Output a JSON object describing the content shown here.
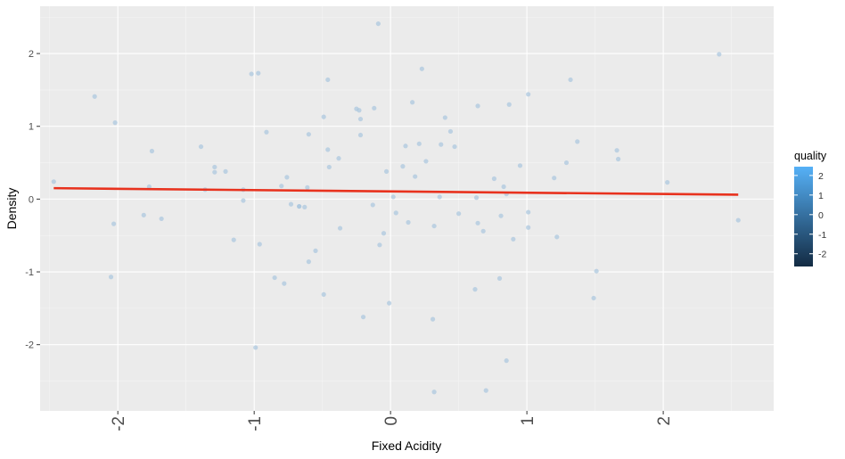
{
  "chart_data": {
    "type": "scatter",
    "title": "",
    "xlabel": "Fixed Acidity",
    "ylabel": "Density",
    "xlim": [
      -2.57,
      2.81
    ],
    "ylim": [
      -2.91,
      2.65
    ],
    "x_ticks": [
      -2,
      -1,
      0,
      1,
      2
    ],
    "x_tick_labels": [
      "-2",
      "-1",
      "0",
      "1",
      "2"
    ],
    "y_ticks": [
      -2,
      -1,
      0,
      1,
      2
    ],
    "y_tick_labels": [
      "-2",
      "-1",
      "0",
      "1",
      "2"
    ],
    "grid": true,
    "points_color": "#a9c6de",
    "points": [
      {
        "x": -2.47,
        "y": 0.24
      },
      {
        "x": -2.17,
        "y": 1.41
      },
      {
        "x": -2.02,
        "y": 1.05
      },
      {
        "x": -2.03,
        "y": -0.34
      },
      {
        "x": -2.05,
        "y": -1.07
      },
      {
        "x": -1.81,
        "y": -0.22
      },
      {
        "x": -1.77,
        "y": 0.17
      },
      {
        "x": -1.75,
        "y": 0.66
      },
      {
        "x": -1.68,
        "y": -0.27
      },
      {
        "x": -1.39,
        "y": 0.72
      },
      {
        "x": -1.36,
        "y": 0.13
      },
      {
        "x": -1.29,
        "y": 0.37
      },
      {
        "x": -1.29,
        "y": 0.44
      },
      {
        "x": -1.21,
        "y": 0.38
      },
      {
        "x": -1.15,
        "y": -0.56
      },
      {
        "x": -1.08,
        "y": 0.13
      },
      {
        "x": -1.08,
        "y": -0.02
      },
      {
        "x": -1.02,
        "y": 1.72
      },
      {
        "x": -0.97,
        "y": 1.73
      },
      {
        "x": -0.99,
        "y": -2.04
      },
      {
        "x": -0.96,
        "y": -0.62
      },
      {
        "x": -0.91,
        "y": 0.92
      },
      {
        "x": -0.85,
        "y": -1.08
      },
      {
        "x": -0.8,
        "y": 0.18
      },
      {
        "x": -0.78,
        "y": -1.16
      },
      {
        "x": -0.76,
        "y": 0.3
      },
      {
        "x": -0.73,
        "y": -0.07
      },
      {
        "x": -0.67,
        "y": -0.1
      },
      {
        "x": -0.67,
        "y": -0.1
      },
      {
        "x": -0.63,
        "y": -0.11
      },
      {
        "x": -0.61,
        "y": 0.16
      },
      {
        "x": -0.6,
        "y": 0.89
      },
      {
        "x": -0.6,
        "y": -0.86
      },
      {
        "x": -0.55,
        "y": -0.71
      },
      {
        "x": -0.49,
        "y": 1.13
      },
      {
        "x": -0.49,
        "y": -1.31
      },
      {
        "x": -0.46,
        "y": 1.64
      },
      {
        "x": -0.46,
        "y": 0.68
      },
      {
        "x": -0.45,
        "y": 0.44
      },
      {
        "x": -0.38,
        "y": 0.56
      },
      {
        "x": -0.37,
        "y": -0.4
      },
      {
        "x": -0.25,
        "y": 1.24
      },
      {
        "x": -0.23,
        "y": 1.22
      },
      {
        "x": -0.22,
        "y": 1.1
      },
      {
        "x": -0.22,
        "y": 0.88
      },
      {
        "x": -0.2,
        "y": -1.62
      },
      {
        "x": -0.13,
        "y": -0.08
      },
      {
        "x": -0.12,
        "y": 1.25
      },
      {
        "x": -0.09,
        "y": 2.41
      },
      {
        "x": -0.08,
        "y": -0.63
      },
      {
        "x": -0.05,
        "y": -0.47
      },
      {
        "x": -0.03,
        "y": 0.38
      },
      {
        "x": -0.01,
        "y": -1.43
      },
      {
        "x": 0.02,
        "y": 0.03
      },
      {
        "x": 0.04,
        "y": -0.19
      },
      {
        "x": 0.09,
        "y": 0.45
      },
      {
        "x": 0.11,
        "y": 0.73
      },
      {
        "x": 0.13,
        "y": -0.32
      },
      {
        "x": 0.16,
        "y": 1.33
      },
      {
        "x": 0.18,
        "y": 0.31
      },
      {
        "x": 0.21,
        "y": 0.76
      },
      {
        "x": 0.23,
        "y": 1.79
      },
      {
        "x": 0.26,
        "y": 0.52
      },
      {
        "x": 0.31,
        "y": -1.65
      },
      {
        "x": 0.32,
        "y": -0.37
      },
      {
        "x": 0.32,
        "y": -2.65
      },
      {
        "x": 0.36,
        "y": 0.03
      },
      {
        "x": 0.37,
        "y": 0.75
      },
      {
        "x": 0.4,
        "y": 1.12
      },
      {
        "x": 0.44,
        "y": 0.93
      },
      {
        "x": 0.47,
        "y": 0.72
      },
      {
        "x": 0.5,
        "y": -0.2
      },
      {
        "x": 0.64,
        "y": 1.28
      },
      {
        "x": 0.63,
        "y": 0.02
      },
      {
        "x": 0.62,
        "y": -1.24
      },
      {
        "x": 0.64,
        "y": -0.33
      },
      {
        "x": 0.68,
        "y": -0.44
      },
      {
        "x": 0.7,
        "y": -2.63
      },
      {
        "x": 0.76,
        "y": 0.28
      },
      {
        "x": 0.8,
        "y": -1.09
      },
      {
        "x": 0.81,
        "y": -0.23
      },
      {
        "x": 0.83,
        "y": 0.17
      },
      {
        "x": 0.85,
        "y": 0.07
      },
      {
        "x": 0.85,
        "y": -2.22
      },
      {
        "x": 0.87,
        "y": 1.3
      },
      {
        "x": 0.9,
        "y": -0.55
      },
      {
        "x": 0.95,
        "y": 0.46
      },
      {
        "x": 1.01,
        "y": 1.44
      },
      {
        "x": 1.01,
        "y": -0.18
      },
      {
        "x": 1.01,
        "y": -0.39
      },
      {
        "x": 1.2,
        "y": 0.29
      },
      {
        "x": 1.22,
        "y": -0.52
      },
      {
        "x": 1.29,
        "y": 0.5
      },
      {
        "x": 1.32,
        "y": 1.64
      },
      {
        "x": 1.37,
        "y": 0.79
      },
      {
        "x": 1.49,
        "y": -1.36
      },
      {
        "x": 1.51,
        "y": -0.99
      },
      {
        "x": 1.66,
        "y": 0.67
      },
      {
        "x": 1.67,
        "y": 0.55
      },
      {
        "x": 2.03,
        "y": 0.23
      },
      {
        "x": 2.41,
        "y": 1.99
      },
      {
        "x": 2.55,
        "y": -0.29
      }
    ],
    "fit_line": {
      "color": "#e8321e",
      "x": [
        -2.47,
        2.55
      ],
      "y": [
        0.15,
        0.06
      ]
    },
    "legend": {
      "title": "quality",
      "placement": "right",
      "range": [
        -2.65,
        2.45
      ],
      "ticks": [
        2,
        1,
        0,
        -1,
        -2
      ],
      "tick_labels": [
        "2",
        "1",
        "0",
        "-1",
        "-2"
      ],
      "colors": [
        "#132b43",
        "#56b1f7"
      ]
    }
  }
}
